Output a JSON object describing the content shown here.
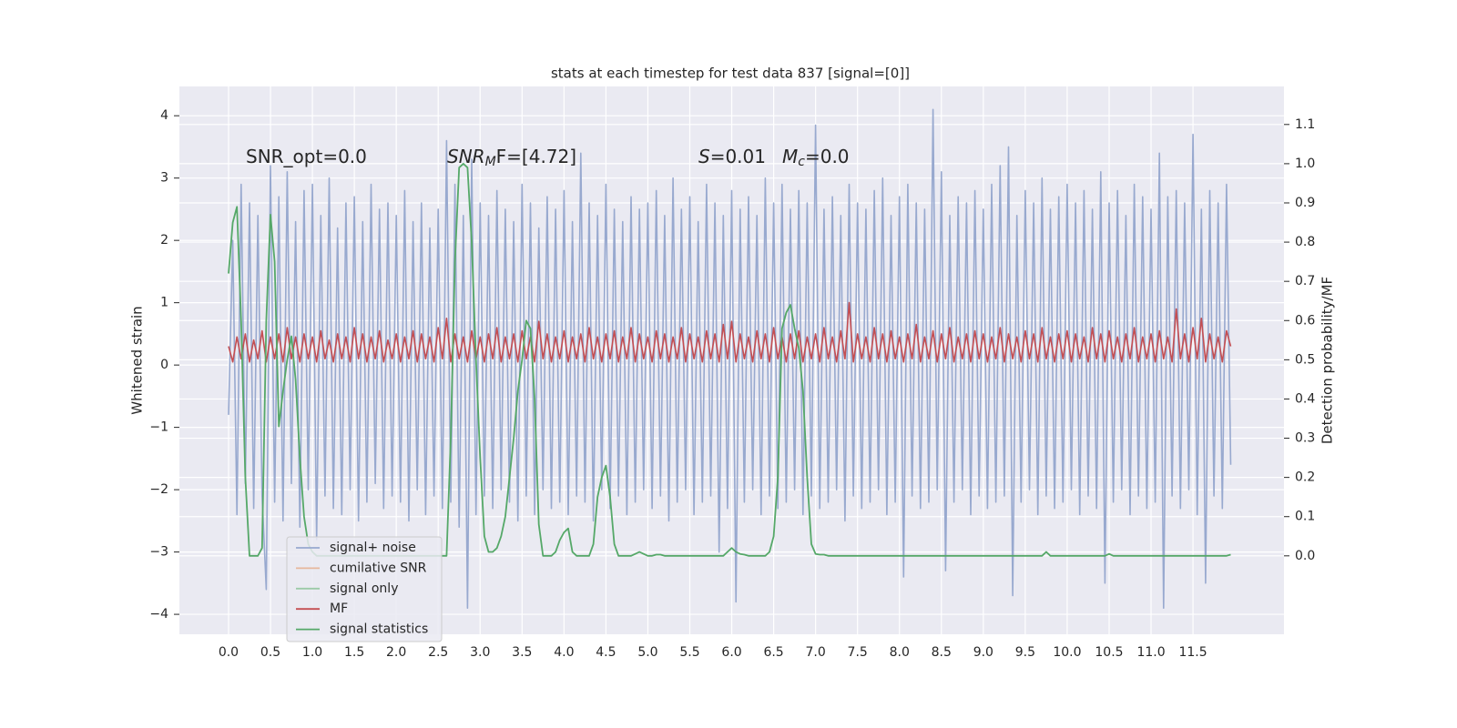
{
  "chart_data": {
    "type": "line",
    "title": "stats at each timestep for test data 837 [signal=[0]]",
    "ylabel": "Whitened strain",
    "y2label": "Detection probability/MF",
    "annotations": [
      {
        "parts": [
          "SNR_opt=0.0"
        ]
      },
      {
        "parts": [
          "SNR",
          "M",
          "F=[4.72]"
        ]
      },
      {
        "parts": [
          "S",
          "=0.01"
        ]
      },
      {
        "parts": [
          "M",
          "c",
          "=0.0"
        ]
      }
    ],
    "grid": true,
    "legend": "lower left",
    "xlim": [
      -0.586,
      12.585
    ],
    "ylim": [
      -4.32,
      4.47
    ],
    "y2lim": [
      -0.2,
      1.197
    ],
    "xticks": [
      {
        "value": 0,
        "label": "0.0"
      },
      {
        "value": 0.5,
        "label": "0.5"
      },
      {
        "value": 1,
        "label": "1.0"
      },
      {
        "value": 1.5,
        "label": "1.5"
      },
      {
        "value": 2,
        "label": "2.0"
      },
      {
        "value": 2.5,
        "label": "2.5"
      },
      {
        "value": 3,
        "label": "3.0"
      },
      {
        "value": 3.5,
        "label": "3.5"
      },
      {
        "value": 4,
        "label": "4.0"
      },
      {
        "value": 4.5,
        "label": "4.5"
      },
      {
        "value": 5,
        "label": "5.0"
      },
      {
        "value": 5.5,
        "label": "5.5"
      },
      {
        "value": 6,
        "label": "6.0"
      },
      {
        "value": 6.5,
        "label": "6.5"
      },
      {
        "value": 7,
        "label": "7.0"
      },
      {
        "value": 7.5,
        "label": "7.5"
      },
      {
        "value": 8,
        "label": "8.0"
      },
      {
        "value": 8.5,
        "label": "8.5"
      },
      {
        "value": 9,
        "label": "9.0"
      },
      {
        "value": 9.5,
        "label": "9.5"
      },
      {
        "value": 10,
        "label": "10.0"
      },
      {
        "value": 10.5,
        "label": "10.5"
      },
      {
        "value": 11,
        "label": "11.0"
      },
      {
        "value": 11.5,
        "label": "11.5"
      }
    ],
    "yticks": [
      {
        "value": -4,
        "label": "−4"
      },
      {
        "value": -3,
        "label": "−3"
      },
      {
        "value": -2,
        "label": "−2"
      },
      {
        "value": -1,
        "label": "−1"
      },
      0,
      1,
      2,
      3,
      4
    ],
    "y2ticks": [
      {
        "value": 0,
        "label": "0.0"
      },
      0.1,
      0.2,
      0.3,
      0.4,
      0.5,
      0.6,
      0.7,
      0.8,
      0.9,
      {
        "value": 1,
        "label": "1.0"
      },
      1.1
    ],
    "x": [
      0,
      0.05,
      0.1,
      0.15,
      0.2,
      0.25,
      0.3,
      0.35,
      0.4,
      0.45,
      0.5,
      0.55,
      0.6,
      0.65,
      0.7,
      0.75,
      0.8,
      0.85,
      0.9,
      0.95,
      1,
      1.05,
      1.1,
      1.15,
      1.2,
      1.25,
      1.3,
      1.35,
      1.4,
      1.45,
      1.5,
      1.55,
      1.6,
      1.65,
      1.7,
      1.75,
      1.8,
      1.85,
      1.9,
      1.95,
      2,
      2.05,
      2.1,
      2.15,
      2.2,
      2.25,
      2.3,
      2.35,
      2.4,
      2.45,
      2.5,
      2.55,
      2.6,
      2.65,
      2.7,
      2.75,
      2.8,
      2.85,
      2.9,
      2.95,
      3,
      3.05,
      3.1,
      3.15,
      3.2,
      3.25,
      3.3,
      3.35,
      3.4,
      3.45,
      3.5,
      3.55,
      3.6,
      3.65,
      3.7,
      3.75,
      3.8,
      3.85,
      3.9,
      3.95,
      4,
      4.05,
      4.1,
      4.15,
      4.2,
      4.25,
      4.3,
      4.35,
      4.4,
      4.45,
      4.5,
      4.55,
      4.6,
      4.65,
      4.7,
      4.75,
      4.8,
      4.85,
      4.9,
      4.95,
      5,
      5.05,
      5.1,
      5.15,
      5.2,
      5.25,
      5.3,
      5.35,
      5.4,
      5.45,
      5.5,
      5.55,
      5.6,
      5.65,
      5.7,
      5.75,
      5.8,
      5.85,
      5.9,
      5.95,
      6,
      6.05,
      6.1,
      6.15,
      6.2,
      6.25,
      6.3,
      6.35,
      6.4,
      6.45,
      6.5,
      6.55,
      6.6,
      6.65,
      6.7,
      6.75,
      6.8,
      6.85,
      6.9,
      6.95,
      7,
      7.05,
      7.1,
      7.15,
      7.2,
      7.25,
      7.3,
      7.35,
      7.4,
      7.45,
      7.5,
      7.55,
      7.6,
      7.65,
      7.7,
      7.75,
      7.8,
      7.85,
      7.9,
      7.95,
      8,
      8.05,
      8.1,
      8.15,
      8.2,
      8.25,
      8.3,
      8.35,
      8.4,
      8.45,
      8.5,
      8.55,
      8.6,
      8.65,
      8.7,
      8.75,
      8.8,
      8.85,
      8.9,
      8.95,
      9,
      9.05,
      9.1,
      9.15,
      9.2,
      9.25,
      9.3,
      9.35,
      9.4,
      9.45,
      9.5,
      9.55,
      9.6,
      9.65,
      9.7,
      9.75,
      9.8,
      9.85,
      9.9,
      9.95,
      10,
      10.05,
      10.1,
      10.15,
      10.2,
      10.25,
      10.3,
      10.35,
      10.4,
      10.45,
      10.5,
      10.55,
      10.6,
      10.65,
      10.7,
      10.75,
      10.8,
      10.85,
      10.9,
      10.95,
      11,
      11.05,
      11.1,
      11.15,
      11.2,
      11.25,
      11.3,
      11.35,
      11.4,
      11.45,
      11.5,
      11.55,
      11.6,
      11.65,
      11.7,
      11.75,
      11.8,
      11.85,
      11.9,
      11.95
    ],
    "series": [
      {
        "name": "signal+ noise",
        "color": "#98a9cf",
        "values": [
          -0.8,
          2.0,
          -2.4,
          2.9,
          -1.9,
          2.6,
          -2.3,
          2.4,
          -2.1,
          -3.6,
          3.2,
          -2.2,
          2.7,
          -2.5,
          3.1,
          -1.9,
          2.3,
          -2.6,
          2.8,
          -2.0,
          2.9,
          -2.8,
          2.4,
          -2.1,
          3.0,
          -2.3,
          2.2,
          -2.4,
          2.6,
          -2.0,
          2.7,
          -2.5,
          2.3,
          -2.2,
          2.9,
          -1.9,
          2.5,
          -2.3,
          2.6,
          -2.1,
          2.4,
          -2.2,
          2.8,
          -2.5,
          2.3,
          -2.0,
          2.6,
          -2.4,
          2.2,
          -2.1,
          2.5,
          -2.3,
          3.6,
          -2.2,
          2.9,
          -2.6,
          2.4,
          -3.9,
          3.3,
          -2.4,
          2.6,
          -2.1,
          2.4,
          -2.3,
          2.8,
          -2.0,
          2.5,
          -2.2,
          2.3,
          -2.5,
          2.9,
          -2.1,
          2.6,
          -2.4,
          2.2,
          -2.0,
          2.7,
          -2.3,
          2.5,
          -2.2,
          2.8,
          -2.4,
          2.3,
          -2.1,
          3.4,
          -2.2,
          2.6,
          -2.5,
          2.4,
          -2.0,
          2.9,
          -2.3,
          2.5,
          -2.1,
          2.3,
          -2.4,
          2.7,
          -2.2,
          2.5,
          -2.0,
          2.6,
          -2.3,
          2.8,
          -2.1,
          2.4,
          -2.5,
          3.0,
          -2.2,
          2.5,
          -2.0,
          2.7,
          -2.4,
          2.3,
          -2.2,
          2.9,
          -2.1,
          2.6,
          -3.0,
          2.4,
          -2.3,
          2.8,
          -3.8,
          2.5,
          -2.2,
          2.7,
          -2.0,
          2.4,
          -2.4,
          3.0,
          -2.1,
          2.6,
          -2.3,
          2.9,
          -2.2,
          2.5,
          -2.0,
          2.8,
          -2.4,
          2.6,
          -2.1,
          3.85,
          -2.3,
          2.5,
          -2.2,
          2.7,
          -2.0,
          2.4,
          -2.5,
          2.9,
          -2.1,
          2.6,
          -2.3,
          2.5,
          -2.2,
          2.8,
          -2.0,
          3.0,
          -2.4,
          2.4,
          -2.2,
          2.7,
          -3.4,
          2.9,
          -2.1,
          2.6,
          -2.3,
          2.5,
          -2.2,
          4.1,
          -2.0,
          3.1,
          -3.3,
          2.4,
          -2.2,
          2.7,
          -2.0,
          2.6,
          -2.4,
          2.8,
          -2.1,
          2.5,
          -2.3,
          2.9,
          -2.2,
          3.2,
          -2.1,
          3.5,
          -3.7,
          2.4,
          -2.2,
          2.8,
          -2.0,
          2.6,
          -2.4,
          3.0,
          -2.1,
          2.5,
          -2.3,
          2.7,
          -2.2,
          2.9,
          -2.0,
          2.6,
          -2.4,
          2.8,
          -2.1,
          2.5,
          -2.3,
          3.1,
          -3.5,
          2.6,
          -2.2,
          2.8,
          -2.0,
          2.4,
          -2.4,
          2.9,
          -2.1,
          2.7,
          -2.3,
          2.5,
          -2.2,
          3.4,
          -3.9,
          2.7,
          -2.1,
          2.8,
          -2.3,
          2.6,
          -2.0,
          3.7,
          -2.4,
          2.5,
          -3.5,
          2.8,
          -2.1,
          2.6,
          -2.3,
          2.9,
          -1.6
        ]
      },
      {
        "name": "cumilative SNR",
        "color": "#e6b79c",
        "axis": "y2",
        "x": [
          0,
          11.95
        ],
        "values": [
          null,
          null
        ]
      },
      {
        "name": "signal only",
        "color": "#9ccaa8",
        "x": [
          0,
          11.95
        ],
        "values": [
          null,
          null
        ]
      },
      {
        "name": "MF",
        "color": "#c44e52",
        "values": [
          0.3,
          0.05,
          0.45,
          0.1,
          0.5,
          0.05,
          0.4,
          0.1,
          0.55,
          0.05,
          0.45,
          0.1,
          0.5,
          0.05,
          0.6,
          0.1,
          0.45,
          0.05,
          0.5,
          0.1,
          0.45,
          0.05,
          0.55,
          0.1,
          0.4,
          0.05,
          0.5,
          0.1,
          0.45,
          0.05,
          0.6,
          0.1,
          0.5,
          0.05,
          0.45,
          0.1,
          0.55,
          0.05,
          0.4,
          0.1,
          0.5,
          0.05,
          0.45,
          0.1,
          0.55,
          0.05,
          0.5,
          0.1,
          0.45,
          0.05,
          0.6,
          0.1,
          0.75,
          0.05,
          0.5,
          0.1,
          0.45,
          0.05,
          0.55,
          0.1,
          0.45,
          0.05,
          0.5,
          0.1,
          0.6,
          0.05,
          0.45,
          0.1,
          0.5,
          0.05,
          0.55,
          0.1,
          0.45,
          0.05,
          0.7,
          0.1,
          0.5,
          0.05,
          0.45,
          0.1,
          0.55,
          0.05,
          0.45,
          0.1,
          0.5,
          0.05,
          0.6,
          0.1,
          0.45,
          0.05,
          0.5,
          0.1,
          0.55,
          0.05,
          0.45,
          0.1,
          0.6,
          0.05,
          0.5,
          0.1,
          0.45,
          0.05,
          0.55,
          0.1,
          0.5,
          0.05,
          0.45,
          0.1,
          0.6,
          0.05,
          0.5,
          0.1,
          0.45,
          0.05,
          0.55,
          0.1,
          0.5,
          0.05,
          0.65,
          0.1,
          0.7,
          0.05,
          0.5,
          0.1,
          0.45,
          0.05,
          0.55,
          0.1,
          0.5,
          0.05,
          0.6,
          0.1,
          0.45,
          0.05,
          0.5,
          0.1,
          0.55,
          0.05,
          0.45,
          0.1,
          0.5,
          0.05,
          0.6,
          0.1,
          0.45,
          0.05,
          0.55,
          0.1,
          1.0,
          0.05,
          0.5,
          0.1,
          0.45,
          0.05,
          0.6,
          0.1,
          0.5,
          0.05,
          0.55,
          0.1,
          0.45,
          0.05,
          0.5,
          0.1,
          0.65,
          0.05,
          0.45,
          0.1,
          0.55,
          0.05,
          0.5,
          0.1,
          0.6,
          0.05,
          0.45,
          0.1,
          0.5,
          0.05,
          0.55,
          0.1,
          0.5,
          0.05,
          0.45,
          0.1,
          0.6,
          0.05,
          0.5,
          0.1,
          0.45,
          0.05,
          0.55,
          0.1,
          0.5,
          0.05,
          0.6,
          0.1,
          0.45,
          0.05,
          0.5,
          0.1,
          0.55,
          0.05,
          0.5,
          0.1,
          0.45,
          0.05,
          0.6,
          0.1,
          0.5,
          0.05,
          0.55,
          0.1,
          0.45,
          0.05,
          0.5,
          0.1,
          0.6,
          0.05,
          0.45,
          0.1,
          0.5,
          0.05,
          0.55,
          0.1,
          0.45,
          0.05,
          0.9,
          0.1,
          0.5,
          0.05,
          0.6,
          0.1,
          0.75,
          0.05,
          0.5,
          0.1,
          0.45,
          0.05,
          0.55,
          0.3
        ]
      },
      {
        "name": "signal statistics",
        "color": "#55a868",
        "axis": "y2",
        "values": [
          0.72,
          0.85,
          0.89,
          0.6,
          0.2,
          0,
          0,
          0,
          0.02,
          0.6,
          0.87,
          0.75,
          0.33,
          0.42,
          0.5,
          0.56,
          0.45,
          0.25,
          0.1,
          0.03,
          0.01,
          0,
          0,
          0,
          0,
          0,
          0,
          0,
          0,
          0,
          0,
          0,
          0,
          0,
          0,
          0,
          0,
          0,
          0,
          0,
          0,
          0,
          0,
          0,
          0,
          0,
          0,
          0,
          0,
          0,
          0,
          0,
          0,
          0.3,
          0.75,
          0.99,
          1.0,
          0.99,
          0.8,
          0.5,
          0.25,
          0.05,
          0.01,
          0.01,
          0.02,
          0.05,
          0.1,
          0.2,
          0.3,
          0.42,
          0.5,
          0.6,
          0.58,
          0.4,
          0.08,
          0,
          0,
          0,
          0.01,
          0.04,
          0.06,
          0.07,
          0.01,
          0,
          0,
          0,
          0,
          0.03,
          0.15,
          0.2,
          0.23,
          0.15,
          0.03,
          0,
          0,
          0,
          0,
          0.005,
          0.01,
          0.005,
          0,
          0,
          0.003,
          0.003,
          0,
          0,
          0,
          0,
          0,
          0,
          0,
          0,
          0,
          0,
          0,
          0,
          0,
          0,
          0,
          0.01,
          0.02,
          0.01,
          0.005,
          0.003,
          0,
          0,
          0,
          0,
          0,
          0.01,
          0.05,
          0.2,
          0.58,
          0.62,
          0.64,
          0.58,
          0.53,
          0.42,
          0.2,
          0.03,
          0.005,
          0.003,
          0.003,
          0,
          0,
          0,
          0,
          0,
          0,
          0,
          0,
          0,
          0,
          0,
          0,
          0,
          0,
          0,
          0,
          0,
          0,
          0,
          0,
          0,
          0,
          0,
          0,
          0,
          0,
          0,
          0,
          0,
          0,
          0,
          0,
          0,
          0,
          0,
          0,
          0,
          0,
          0,
          0,
          0,
          0,
          0,
          0,
          0,
          0,
          0,
          0,
          0,
          0,
          0,
          0,
          0.01,
          0,
          0,
          0,
          0,
          0,
          0,
          0,
          0,
          0,
          0,
          0,
          0,
          0,
          0,
          0.005,
          0,
          0,
          0,
          0,
          0,
          0,
          0,
          0,
          0,
          0,
          0,
          0,
          0,
          0,
          0,
          0,
          0,
          0,
          0,
          0,
          0,
          0,
          0,
          0,
          0,
          0,
          0,
          0,
          0.003
        ]
      }
    ]
  }
}
